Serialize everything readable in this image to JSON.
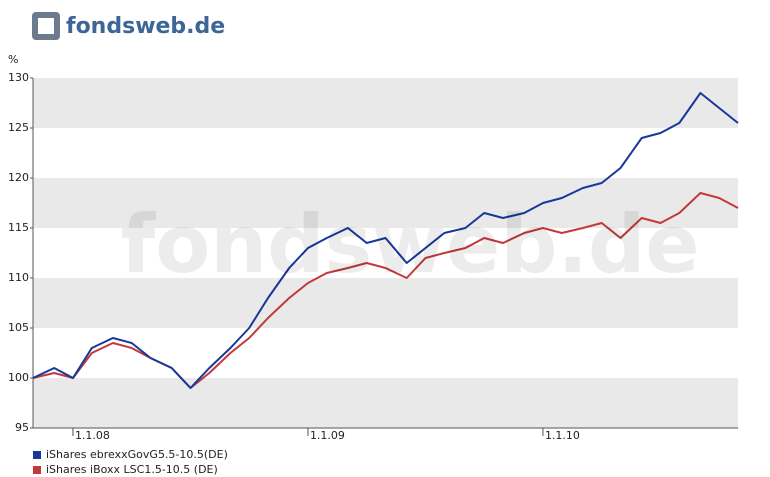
{
  "logo": "fondsweb.de",
  "chart_data": {
    "type": "line",
    "y_label": "%",
    "x": [
      2007.83,
      2007.92,
      2008.0,
      2008.08,
      2008.17,
      2008.25,
      2008.33,
      2008.42,
      2008.5,
      2008.58,
      2008.67,
      2008.75,
      2008.83,
      2008.92,
      2009.0,
      2009.08,
      2009.17,
      2009.25,
      2009.33,
      2009.42,
      2009.5,
      2009.58,
      2009.67,
      2009.75,
      2009.83,
      2009.92,
      2010.0,
      2010.08,
      2010.17,
      2010.25,
      2010.33,
      2010.42,
      2010.5,
      2010.58,
      2010.67,
      2010.75,
      2010.83
    ],
    "series": [
      {
        "name": "iShares ebrexxGovG5.5-10.5(DE)",
        "color": "#17389a",
        "values": [
          100,
          101,
          100,
          103,
          104,
          103.5,
          102,
          101,
          99,
          101,
          103,
          105,
          108,
          111,
          113,
          114,
          115,
          113.5,
          114,
          111.5,
          113,
          114.5,
          115,
          116.5,
          116,
          116.5,
          117.5,
          118,
          119,
          119.5,
          121,
          124,
          124.5,
          125.5,
          128.5,
          127,
          125.5
        ]
      },
      {
        "name": "iShares iBoxx LSC1.5-10.5 (DE)",
        "color": "#c2393b",
        "values": [
          100,
          100.5,
          100,
          102.5,
          103.5,
          103,
          102,
          101,
          99,
          100.5,
          102.5,
          104,
          106,
          108,
          109.5,
          110.5,
          111,
          111.5,
          111,
          110,
          112,
          112.5,
          113,
          114,
          113.5,
          114.5,
          115,
          114.5,
          115,
          115.5,
          114,
          116,
          115.5,
          116.5,
          118.5,
          118,
          117
        ]
      }
    ],
    "xlim": [
      2007.83,
      2010.83
    ],
    "xticks": [
      {
        "value": 2008,
        "label": "1.1.08"
      },
      {
        "value": 2009,
        "label": "1.1.09"
      },
      {
        "value": 2010,
        "label": "1.1.10"
      }
    ],
    "ylim": [
      95,
      130
    ],
    "yticks": [
      95,
      100,
      105,
      110,
      115,
      120,
      125,
      130
    ],
    "bands": true,
    "band_color": "#e9e9e9",
    "legend": "bottom-left"
  }
}
